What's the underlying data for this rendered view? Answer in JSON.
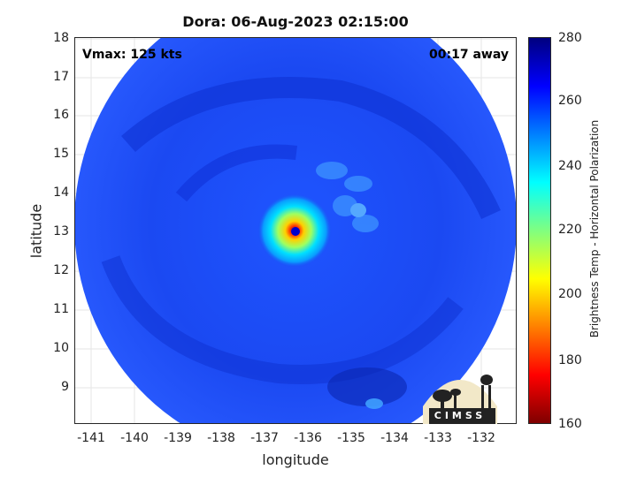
{
  "title": "Dora: 06-Aug-2023 02:15:00",
  "annotations": {
    "vmax": "Vmax: 125 kts",
    "time_away": "00:17 away"
  },
  "axes": {
    "xlabel": "longitude",
    "ylabel": "latitude",
    "xlim": [
      -141.5,
      -131.3
    ],
    "ylim": [
      8.1,
      18.1
    ],
    "xticks": [
      "-141",
      "-140",
      "-139",
      "-138",
      "-137",
      "-136",
      "-135",
      "-134",
      "-133",
      "-132"
    ],
    "yticks": [
      "18",
      "17",
      "16",
      "15",
      "14",
      "13",
      "12",
      "11",
      "10",
      "9"
    ],
    "grid": true
  },
  "colorbar": {
    "label": "Brightness Temp - Horizontal Polarization",
    "ticks": [
      "280",
      "260",
      "240",
      "220",
      "200",
      "180",
      "160"
    ],
    "range": [
      160,
      280
    ],
    "colormap": "jet"
  },
  "storm": {
    "name": "Dora",
    "center_lon": -136.1,
    "center_lat": 13.0
  },
  "logo": {
    "text": "CIMSS"
  },
  "colors": {
    "background_swath": "#1540f0",
    "eye": "#ffff00",
    "eyewall": "#00ffff",
    "low_tb": "#ff0000"
  }
}
